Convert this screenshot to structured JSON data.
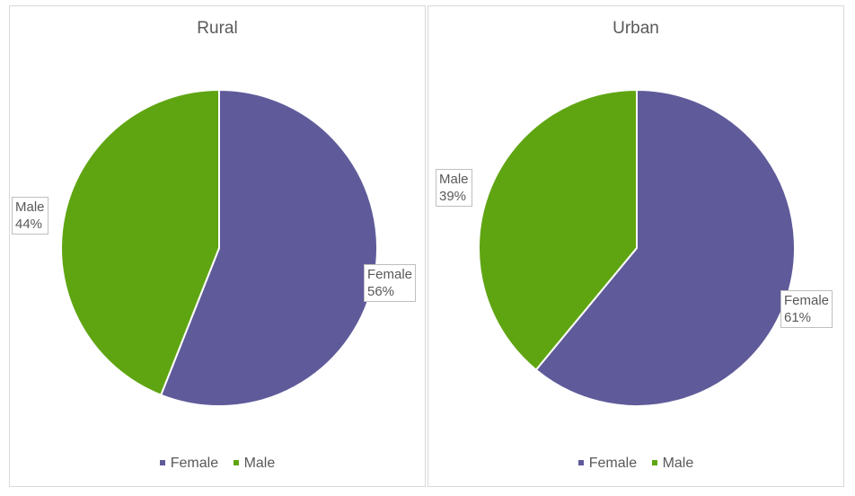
{
  "colors": {
    "female": "#5f5b9a",
    "male": "#5fa512"
  },
  "legend": {
    "female": "Female",
    "male": "Male"
  },
  "chart_data": [
    {
      "type": "pie",
      "title": "Rural",
      "slices": [
        {
          "label": "Female",
          "value": 56,
          "display": "56%",
          "color": "#5f5b9a"
        },
        {
          "label": "Male",
          "value": 44,
          "display": "44%",
          "color": "#5fa512"
        }
      ],
      "legend_position": "bottom"
    },
    {
      "type": "pie",
      "title": "Urban",
      "slices": [
        {
          "label": "Female",
          "value": 61,
          "display": "61%",
          "color": "#5f5b9a"
        },
        {
          "label": "Male",
          "value": 39,
          "display": "39%",
          "color": "#5fa512"
        }
      ],
      "legend_position": "bottom"
    }
  ]
}
